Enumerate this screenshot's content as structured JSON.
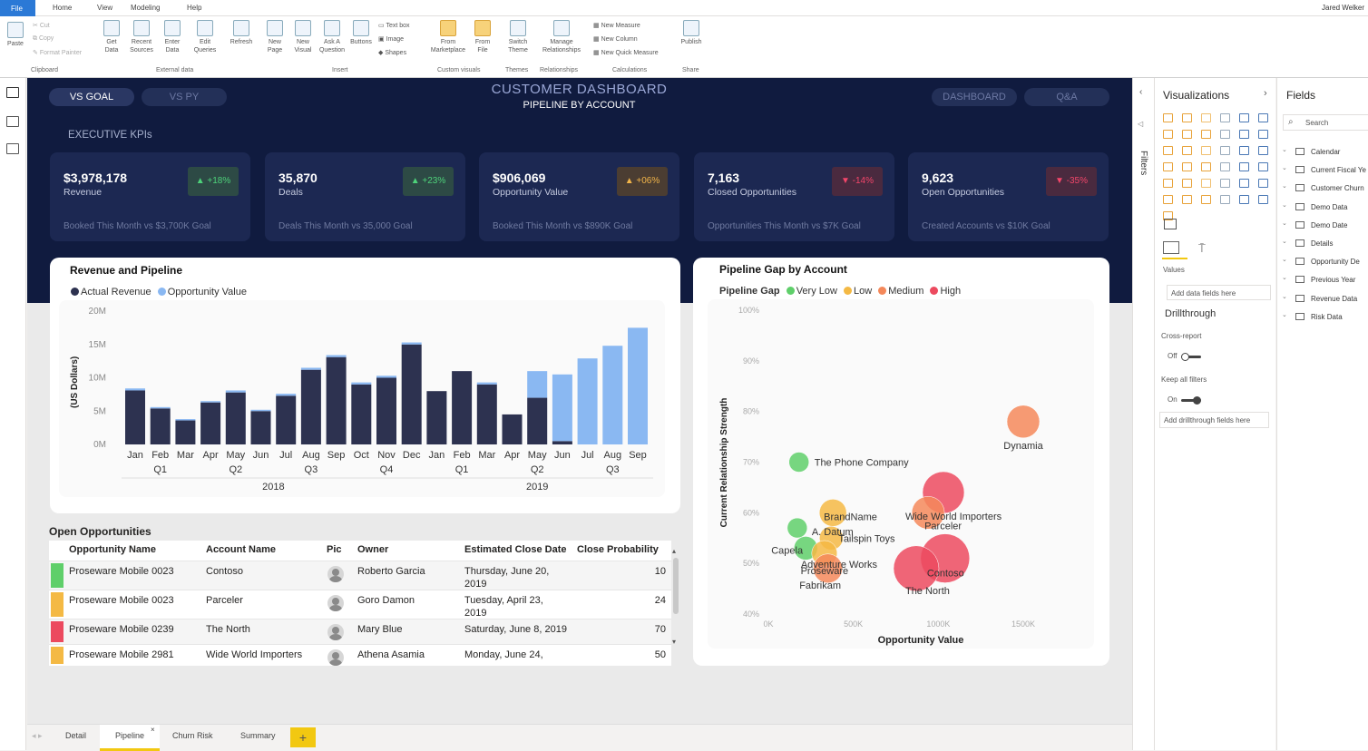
{
  "ribbon": {
    "tabs": [
      "File",
      "Home",
      "View",
      "Modeling",
      "Help"
    ],
    "user": "Jared Welker",
    "clipboard": {
      "paste": "Paste",
      "cut": "Cut",
      "copy": "Copy",
      "format_painter": "Format Painter",
      "group": "Clipboard"
    },
    "external": {
      "get_data": "Get Data",
      "recent_sources": "Recent Sources",
      "enter_data": "Enter Data",
      "edit_queries": "Edit Queries",
      "refresh": "Refresh",
      "group": "External data"
    },
    "insert": {
      "new_page": "New Page",
      "new_visual": "New Visual",
      "ask_question": "Ask A Question",
      "buttons": "Buttons",
      "text_box": "Text box",
      "image": "Image",
      "shapes": "Shapes",
      "group": "Insert"
    },
    "custom_visuals": {
      "from_marketplace": "From Marketplace",
      "from_file": "From File",
      "group": "Custom visuals"
    },
    "themes": {
      "switch_theme": "Switch Theme",
      "group": "Themes"
    },
    "relationships": {
      "manage": "Manage Relationships",
      "group": "Relationships"
    },
    "calculations": {
      "new_measure": "New Measure",
      "new_column": "New Column",
      "new_quick_measure": "New Quick Measure",
      "group": "Calculations"
    },
    "share": {
      "publish": "Publish",
      "group": "Share"
    }
  },
  "header": {
    "tab_vs_goal": "VS GOAL",
    "tab_vs_py": "VS PY",
    "title": "CUSTOMER DASHBOARD",
    "subtitle": "PIPELINE BY ACCOUNT",
    "btn_dashboard": "DASHBOARD",
    "btn_qa": "Q&A",
    "kpi_header": "EXECUTIVE KPIs"
  },
  "kpis": [
    {
      "value": "$3,978,178",
      "label": "Revenue",
      "badge": "▲ +18%",
      "footer": "Booked This Month vs $3,700K Goal",
      "status": "up"
    },
    {
      "value": "35,870",
      "label": "Deals",
      "badge": "▲ +23%",
      "footer": "Deals This Month vs 35,000 Goal",
      "status": "up"
    },
    {
      "value": "$906,069",
      "label": "Opportunity Value",
      "badge": "▲ +06%",
      "footer": "Booked This Month vs $890K Goal",
      "status": "mid"
    },
    {
      "value": "7,163",
      "label": "Closed Opportunities",
      "badge": "▼ -14%",
      "footer": "Opportunities This Month vs $7K Goal",
      "status": "down"
    },
    {
      "value": "9,623",
      "label": "Open Opportunities",
      "badge": "▼ -35%",
      "footer": "Created Accounts vs $10K Goal",
      "status": "down"
    }
  ],
  "revenue_chart": {
    "title": "Revenue and Pipeline",
    "legend": [
      "Actual Revenue",
      "Opportunity Value"
    ]
  },
  "gap_chart": {
    "title": "Pipeline Gap by Account",
    "legend_title": "Pipeline Gap",
    "legend": [
      "Very Low",
      "Low",
      "Medium",
      "High"
    ]
  },
  "chart_data": [
    {
      "type": "bar",
      "title": "Revenue and Pipeline",
      "ylabel": "(US Dollars)",
      "ylim": [
        0,
        20
      ],
      "yticks": [
        "0M",
        "5M",
        "10M",
        "15M",
        "20M"
      ],
      "categories": [
        "Jan",
        "Feb",
        "Mar",
        "Apr",
        "May",
        "Jun",
        "Jul",
        "Aug",
        "Sep",
        "Oct",
        "Nov",
        "Dec",
        "Jan",
        "Feb",
        "Mar",
        "Apr",
        "May",
        "Jun",
        "Jul",
        "Aug",
        "Sep"
      ],
      "quarters": [
        {
          "label": "Q1",
          "index": 1
        },
        {
          "label": "Q2",
          "index": 4
        },
        {
          "label": "Q3",
          "index": 7
        },
        {
          "label": "Q4",
          "index": 10
        },
        {
          "label": "Q1",
          "index": 13
        },
        {
          "label": "Q2",
          "index": 16
        },
        {
          "label": "Q3",
          "index": 19
        }
      ],
      "years": [
        {
          "label": "2018",
          "index": 5.5
        },
        {
          "label": "2019",
          "index": 16
        }
      ],
      "series": [
        {
          "name": "Actual Revenue",
          "color": "#2d3250",
          "values": [
            8.1,
            5.4,
            3.6,
            6.3,
            7.8,
            5.0,
            7.3,
            11.2,
            13.1,
            9.0,
            10.0,
            15.0,
            8.0,
            11.0,
            9.0,
            4.5,
            7.0,
            0.5,
            0,
            0,
            0
          ]
        },
        {
          "name": "Opportunity Value",
          "color": "#8ab8f2",
          "values": [
            0.3,
            0.2,
            0.2,
            0.2,
            0.3,
            0.2,
            0.3,
            0.3,
            0.3,
            0.3,
            0.3,
            0.3,
            0,
            0,
            0.3,
            0,
            4.0,
            10.0,
            12.9,
            14.8,
            17.5
          ]
        }
      ],
      "grid": false,
      "legend": "top-left"
    },
    {
      "type": "scatter",
      "title": "Pipeline Gap by Account",
      "xlabel": "Opportunity Value",
      "ylabel": "Current Relationship Strength",
      "xlim": [
        0,
        1500
      ],
      "ylim": [
        40,
        100
      ],
      "xticks": [
        "0K",
        "500K",
        "1000K",
        "1500K"
      ],
      "yticks": [
        "40%",
        "50%",
        "60%",
        "70%",
        "80%",
        "90%",
        "100%"
      ],
      "gap_colors": {
        "Very Low": "#5fcf6a",
        "Low": "#f4b944",
        "Medium": "#f4885a",
        "High": "#ec4a5f"
      },
      "points": [
        {
          "label": "Dynamia",
          "x": 1500,
          "y": 78,
          "r": 18,
          "gap": "Medium"
        },
        {
          "label": "The Phone Company",
          "x": 180,
          "y": 70,
          "r": 11,
          "gap": "Very Low"
        },
        {
          "label": "BrandName",
          "x": 380,
          "y": 60,
          "r": 15,
          "gap": "Low"
        },
        {
          "label": "A. Datum",
          "x": 170,
          "y": 57,
          "r": 11,
          "gap": "Very Low"
        },
        {
          "label": "Tailspin Toys",
          "x": 370,
          "y": 55,
          "r": 13,
          "gap": "Low"
        },
        {
          "label": "Capela",
          "x": 220,
          "y": 53,
          "r": 13,
          "gap": "Very Low"
        },
        {
          "label": "Adventure Works",
          "x": 330,
          "y": 52,
          "r": 14,
          "gap": "Low"
        },
        {
          "label": "Proseware",
          "x": 350,
          "y": 49,
          "r": 16,
          "gap": "Medium"
        },
        {
          "label": "Fabrikam",
          "x": 300,
          "y": 45,
          "r": 1,
          "gap": "Medium"
        },
        {
          "label": "Wide World Importers",
          "x": 1030,
          "y": 64,
          "r": 23,
          "gap": "High"
        },
        {
          "label": "Parceler",
          "x": 940,
          "y": 60,
          "r": 18,
          "gap": "Medium"
        },
        {
          "label": "Contoso",
          "x": 1040,
          "y": 51,
          "r": 27,
          "gap": "High"
        },
        {
          "label": "The North",
          "x": 870,
          "y": 49,
          "r": 25,
          "gap": "High"
        }
      ],
      "grid": false,
      "legend": "top-left"
    }
  ],
  "table": {
    "title": "Open Opportunities",
    "headers": [
      "Opportunity Name",
      "Account Name",
      "Pic",
      "Owner",
      "Estimated Close Date",
      "Close Probability"
    ],
    "rows": [
      {
        "color": "#5fcf6a",
        "opp": "Proseware Mobile 0023",
        "account": "Contoso",
        "owner": "Roberto Garcia",
        "date1": "Thursday, June 20,",
        "date2": "2019",
        "prob": "10"
      },
      {
        "color": "#f4b944",
        "opp": "Proseware Mobile 0023",
        "account": "Parceler",
        "owner": "Goro Damon",
        "date1": "Tuesday, April 23,",
        "date2": "2019",
        "prob": "24"
      },
      {
        "color": "#ec4a5f",
        "opp": "Proseware Mobile 0239",
        "account": "The North",
        "owner": "Mary Blue",
        "date1": "Saturday, June 8, 2019",
        "date2": "",
        "prob": "70"
      },
      {
        "color": "#f4b944",
        "opp": "Proseware Mobile 2981",
        "account": "Wide World Importers",
        "owner": "Athena Asamia",
        "date1": "Monday, June 24,",
        "date2": "",
        "prob": "50"
      }
    ]
  },
  "pages": {
    "tabs": [
      "Detail",
      "Pipeline",
      "Churn Risk",
      "Summary"
    ],
    "add": "+",
    "active": "Pipeline"
  },
  "filters_label": "Filters",
  "viz_pane": {
    "title": "Visualizations",
    "values_label": "Values",
    "add_data_fields": "Add data fields here",
    "drillthrough": "Drillthrough",
    "cross_report": "Cross-report",
    "cross_report_state": "Off",
    "keep_filters": "Keep all filters",
    "keep_filters_state": "On",
    "add_drill_fields": "Add drillthrough fields here"
  },
  "fields_pane": {
    "title": "Fields",
    "search_placeholder": "Search",
    "items": [
      "Calendar",
      "Current Fiscal Ye",
      "Customer Churn",
      "Demo Data",
      "Demo Date",
      "Details",
      "Opportunity De",
      "Previous Year",
      "Revenue Data",
      "Risk Data"
    ]
  }
}
